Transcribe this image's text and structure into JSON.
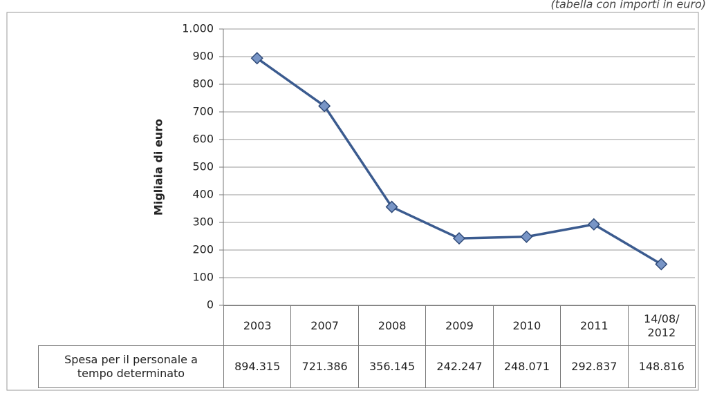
{
  "chart_data": {
    "type": "line",
    "subtitle": "(tabella con importi in euro)",
    "y_label": "Migliaia di euro",
    "categories": [
      "2003",
      "2007",
      "2008",
      "2009",
      "2010",
      "2011",
      "14/08/2012"
    ],
    "series": [
      {
        "name": "Spesa per il personale a tempo determinato",
        "color": "#3b5b8f",
        "values": [
          894.315,
          721.386,
          356.145,
          242.247,
          248.071,
          292.837,
          148.816
        ]
      }
    ],
    "ylim": [
      0,
      1000
    ],
    "yticks": [
      0,
      100,
      200,
      300,
      400,
      500,
      600,
      700,
      800,
      900,
      {
        "value": 1000,
        "label": "1.000"
      }
    ],
    "grid": true
  }
}
